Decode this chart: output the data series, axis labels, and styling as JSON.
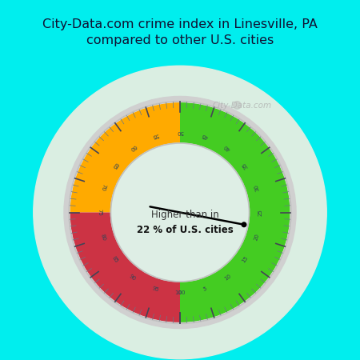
{
  "title": "City-Data.com crime index in Linesville, PA\ncompared to other U.S. cities",
  "title_color": "#111133",
  "title_bg_color": "#00EEEE",
  "gauge_bg_color": "#e0ede8",
  "inner_bg_color": "#deeee5",
  "needle_value": 22,
  "gauge_min": 0,
  "gauge_max": 100,
  "green_range": [
    0,
    50
  ],
  "orange_range": [
    50,
    75
  ],
  "red_range": [
    75,
    100
  ],
  "green_color": "#44cc22",
  "orange_color": "#ffaa00",
  "red_color": "#cc3344",
  "label_text1": "Higher than in",
  "label_text2": "22 % of U.S. cities",
  "watermark": "City-Data.com",
  "outer_r": 1.08,
  "inner_r": 0.68
}
